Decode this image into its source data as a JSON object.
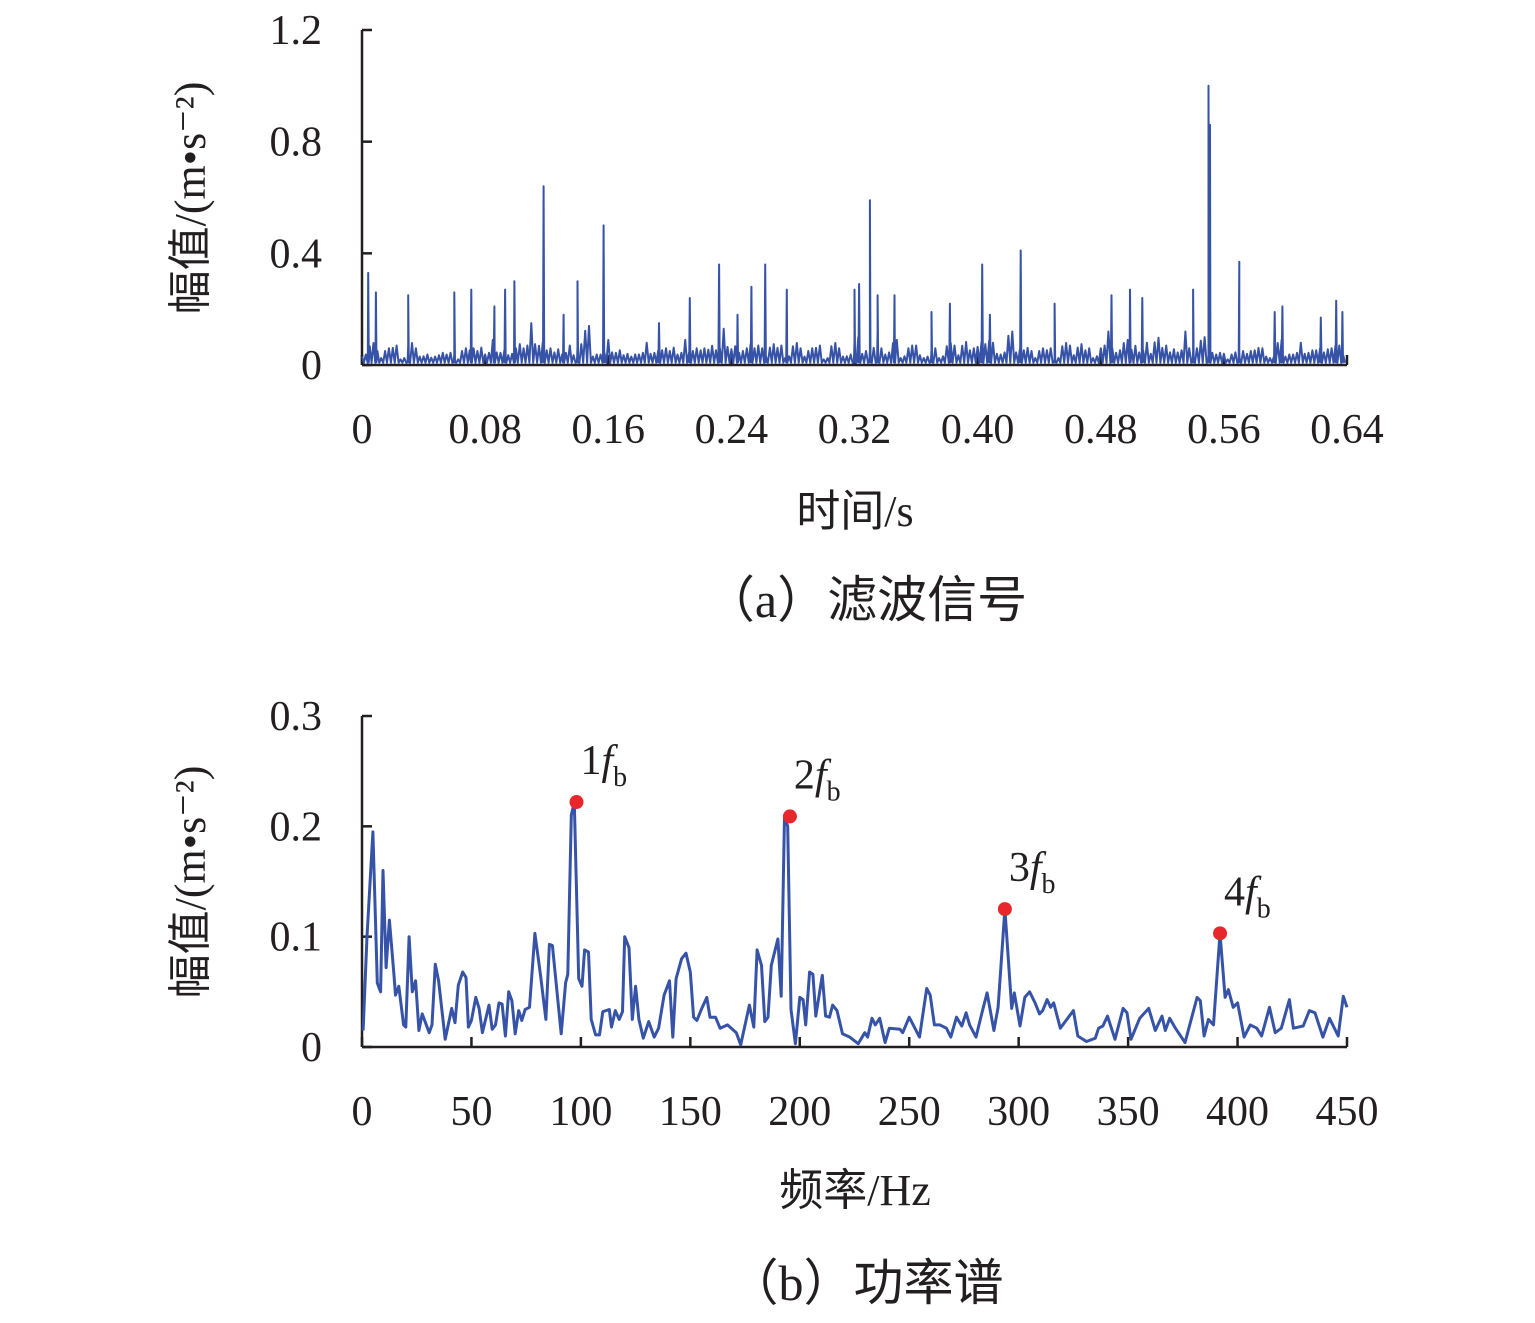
{
  "colors": {
    "line": "#3653a8",
    "marker": "#e8262b",
    "axis": "#231f20"
  },
  "chart_data": [
    {
      "type": "line",
      "id": "filtered-signal",
      "caption": "（a）滤波信号",
      "xlabel": "时间/s",
      "ylabel": "幅值/(m•s⁻²)",
      "xlim": [
        0,
        0.64
      ],
      "ylim": [
        0,
        1.2
      ],
      "xticks": [
        0,
        0.08,
        0.16,
        0.24,
        0.32,
        0.4,
        0.48,
        0.56,
        0.64
      ],
      "xtick_labels": [
        "0",
        "0.08",
        "0.16",
        "0.24",
        "0.32",
        "0.40",
        "0.48",
        "0.56",
        "0.64"
      ],
      "yticks": [
        0,
        0.4,
        0.8,
        1.2
      ],
      "ytick_labels": [
        "0",
        "0.4",
        "0.8",
        "1.2"
      ],
      "grid": false,
      "baseline_step": 0.005,
      "baseline": [
        0.06,
        0.09,
        0.05,
        0.08,
        0.07,
        0.04,
        0.09,
        0.06,
        0.05,
        0.03,
        0.07,
        0.05,
        0.04,
        0.08,
        0.06,
        0.1,
        0.05,
        0.09,
        0.07,
        0.04,
        0.12,
        0.08,
        0.15,
        0.11,
        0.06,
        0.09,
        0.05,
        0.07,
        0.1,
        0.14,
        0.06,
        0.05,
        0.09,
        0.07,
        0.04,
        0.06,
        0.05,
        0.08,
        0.07,
        0.06,
        0.1,
        0.05,
        0.09,
        0.08,
        0.06,
        0.11,
        0.07,
        0.13,
        0.09,
        0.05,
        0.12,
        0.08,
        0.06,
        0.1,
        0.07,
        0.05,
        0.09,
        0.06,
        0.08,
        0.07,
        0.04,
        0.09,
        0.06,
        0.05,
        0.1,
        0.08,
        0.07,
        0.12,
        0.06,
        0.09,
        0.05,
        0.08,
        0.07,
        0.04,
        0.06,
        0.05,
        0.09,
        0.07,
        0.11,
        0.06,
        0.13,
        0.1,
        0.08,
        0.06,
        0.12,
        0.09,
        0.07,
        0.05,
        0.08,
        0.06,
        0.04,
        0.09,
        0.07,
        0.1,
        0.06,
        0.05,
        0.08,
        0.12,
        0.07,
        0.09,
        0.11,
        0.06,
        0.08,
        0.13,
        0.07,
        0.09,
        0.06,
        0.12,
        0.08,
        0.1,
        0.07,
        0.05,
        0.04,
        0.06,
        0.05,
        0.08,
        0.07,
        0.06,
        0.04,
        0.09,
        0.06,
        0.05,
        0.08,
        0.07,
        0.06,
        0.09,
        0.08,
        0.07
      ],
      "spikes": [
        [
          0.004,
          0.33
        ],
        [
          0.009,
          0.26
        ],
        [
          0.03,
          0.25
        ],
        [
          0.06,
          0.26
        ],
        [
          0.071,
          0.27
        ],
        [
          0.086,
          0.21
        ],
        [
          0.093,
          0.27
        ],
        [
          0.099,
          0.3
        ],
        [
          0.118,
          0.64
        ],
        [
          0.131,
          0.18
        ],
        [
          0.14,
          0.3
        ],
        [
          0.157,
          0.5
        ],
        [
          0.193,
          0.15
        ],
        [
          0.213,
          0.24
        ],
        [
          0.232,
          0.36
        ],
        [
          0.244,
          0.18
        ],
        [
          0.253,
          0.28
        ],
        [
          0.262,
          0.36
        ],
        [
          0.276,
          0.27
        ],
        [
          0.32,
          0.27
        ],
        [
          0.323,
          0.29
        ],
        [
          0.33,
          0.59
        ],
        [
          0.335,
          0.25
        ],
        [
          0.346,
          0.25
        ],
        [
          0.37,
          0.19
        ],
        [
          0.382,
          0.22
        ],
        [
          0.403,
          0.36
        ],
        [
          0.408,
          0.18
        ],
        [
          0.428,
          0.41
        ],
        [
          0.45,
          0.22
        ],
        [
          0.487,
          0.25
        ],
        [
          0.499,
          0.27
        ],
        [
          0.507,
          0.24
        ],
        [
          0.54,
          0.27
        ],
        [
          0.55,
          1.0
        ],
        [
          0.551,
          0.86
        ],
        [
          0.57,
          0.37
        ],
        [
          0.593,
          0.19
        ],
        [
          0.598,
          0.21
        ],
        [
          0.623,
          0.17
        ],
        [
          0.633,
          0.23
        ],
        [
          0.637,
          0.19
        ]
      ]
    },
    {
      "type": "line",
      "id": "power-spectrum",
      "caption": "（b）功率谱",
      "xlabel": "频率/Hz",
      "ylabel": "幅值/(m•s⁻²)",
      "xlim": [
        0,
        450
      ],
      "ylim": [
        0,
        0.3
      ],
      "xticks": [
        0,
        50,
        100,
        150,
        200,
        250,
        300,
        350,
        400,
        450
      ],
      "xtick_labels": [
        "0",
        "50",
        "100",
        "150",
        "200",
        "250",
        "300",
        "350",
        "400",
        "450"
      ],
      "yticks": [
        0,
        0.1,
        0.2,
        0.3
      ],
      "ytick_labels": [
        "0",
        "0.1",
        "0.2",
        "0.3"
      ],
      "grid": false,
      "points": [
        [
          0.5,
          0.015
        ],
        [
          2.3,
          0.1
        ],
        [
          5,
          0.195
        ],
        [
          7,
          0.058
        ],
        [
          8.5,
          0.05
        ],
        [
          9.6,
          0.16
        ],
        [
          11,
          0.072
        ],
        [
          12.5,
          0.115
        ],
        [
          14.6,
          0.065
        ],
        [
          15.3,
          0.047
        ],
        [
          16.8,
          0.055
        ],
        [
          19,
          0.02
        ],
        [
          20,
          0.018
        ],
        [
          21.5,
          0.1
        ],
        [
          23,
          0.05
        ],
        [
          24.5,
          0.06
        ],
        [
          26,
          0.015
        ],
        [
          27.5,
          0.03
        ],
        [
          30.7,
          0.013
        ],
        [
          32,
          0.02
        ],
        [
          33.5,
          0.075
        ],
        [
          35,
          0.06
        ],
        [
          38,
          0.007
        ],
        [
          41,
          0.035
        ],
        [
          42.5,
          0.022
        ],
        [
          44,
          0.056
        ],
        [
          46,
          0.068
        ],
        [
          47.5,
          0.063
        ],
        [
          48.6,
          0.018
        ],
        [
          50,
          0.024
        ],
        [
          52,
          0.045
        ],
        [
          53.5,
          0.035
        ],
        [
          55,
          0.013
        ],
        [
          58,
          0.038
        ],
        [
          59.5,
          0.016
        ],
        [
          61,
          0.02
        ],
        [
          62.6,
          0.04
        ],
        [
          64,
          0.039
        ],
        [
          65.5,
          0.01
        ],
        [
          67,
          0.05
        ],
        [
          68.5,
          0.042
        ],
        [
          70,
          0.012
        ],
        [
          71.6,
          0.033
        ],
        [
          73,
          0.024
        ],
        [
          74.5,
          0.034
        ],
        [
          76.5,
          0.036
        ],
        [
          79,
          0.103
        ],
        [
          81.5,
          0.066
        ],
        [
          84,
          0.025
        ],
        [
          85.6,
          0.093
        ],
        [
          87,
          0.092
        ],
        [
          91,
          0.012
        ],
        [
          93,
          0.058
        ],
        [
          94,
          0.066
        ],
        [
          95.6,
          0.21
        ],
        [
          97,
          0.222
        ],
        [
          99,
          0.062
        ],
        [
          100.5,
          0.055
        ],
        [
          101.7,
          0.088
        ],
        [
          103.5,
          0.086
        ],
        [
          104.7,
          0.025
        ],
        [
          106.7,
          0.011
        ],
        [
          108.5,
          0.011
        ],
        [
          110,
          0.032
        ],
        [
          113,
          0.034
        ],
        [
          114,
          0.018
        ],
        [
          115.7,
          0.033
        ],
        [
          117.5,
          0.025
        ],
        [
          119,
          0.032
        ],
        [
          120,
          0.1
        ],
        [
          122,
          0.09
        ],
        [
          123.5,
          0.025
        ],
        [
          125,
          0.055
        ],
        [
          126.5,
          0.025
        ],
        [
          128.5,
          0.008
        ],
        [
          131,
          0.023
        ],
        [
          133.5,
          0.009
        ],
        [
          135.5,
          0.017
        ],
        [
          138,
          0.047
        ],
        [
          140.5,
          0.06
        ],
        [
          142,
          0.009
        ],
        [
          143.5,
          0.062
        ],
        [
          146,
          0.08
        ],
        [
          148,
          0.085
        ],
        [
          150,
          0.068
        ],
        [
          151.5,
          0.027
        ],
        [
          153,
          0.024
        ],
        [
          155,
          0.034
        ],
        [
          157.5,
          0.045
        ],
        [
          159,
          0.027
        ],
        [
          161.5,
          0.027
        ],
        [
          163.6,
          0.017
        ],
        [
          167,
          0.02
        ],
        [
          171,
          0.013
        ],
        [
          173,
          0.002
        ],
        [
          177,
          0.038
        ],
        [
          179,
          0.018
        ],
        [
          180.5,
          0.088
        ],
        [
          182.5,
          0.074
        ],
        [
          184,
          0.023
        ],
        [
          185.5,
          0.027
        ],
        [
          187,
          0.074
        ],
        [
          190,
          0.098
        ],
        [
          191.5,
          0.046
        ],
        [
          193,
          0.209
        ],
        [
          194.5,
          0.2
        ],
        [
          196,
          0.034
        ],
        [
          198,
          0.003
        ],
        [
          200,
          0.045
        ],
        [
          201.5,
          0.043
        ],
        [
          202.7,
          0.02
        ],
        [
          204.5,
          0.068
        ],
        [
          206,
          0.066
        ],
        [
          207.3,
          0.028
        ],
        [
          210.3,
          0.065
        ],
        [
          211.8,
          0.028
        ],
        [
          213.6,
          0.027
        ],
        [
          215,
          0.038
        ],
        [
          217,
          0.033
        ],
        [
          219.5,
          0.012
        ],
        [
          222.8,
          0.009
        ],
        [
          226.7,
          0.003
        ],
        [
          229.7,
          0.013
        ],
        [
          231,
          0.009
        ],
        [
          233,
          0.026
        ],
        [
          234.5,
          0.02
        ],
        [
          236.5,
          0.026
        ],
        [
          239,
          0.004
        ],
        [
          240.9,
          0.017
        ],
        [
          245.8,
          0.016
        ],
        [
          247,
          0.013
        ],
        [
          250,
          0.027
        ],
        [
          254.7,
          0.009
        ],
        [
          258,
          0.053
        ],
        [
          259.6,
          0.047
        ],
        [
          261.5,
          0.02
        ],
        [
          264,
          0.02
        ],
        [
          267,
          0.017
        ],
        [
          269,
          0.009
        ],
        [
          271.6,
          0.027
        ],
        [
          274,
          0.019
        ],
        [
          276,
          0.031
        ],
        [
          277.6,
          0.02
        ],
        [
          280.5,
          0.009
        ],
        [
          283.5,
          0.033
        ],
        [
          285.6,
          0.049
        ],
        [
          288.7,
          0.015
        ],
        [
          290.6,
          0.036
        ],
        [
          293.7,
          0.125
        ],
        [
          296.8,
          0.035
        ],
        [
          298,
          0.049
        ],
        [
          300.6,
          0.019
        ],
        [
          302.8,
          0.045
        ],
        [
          305,
          0.05
        ],
        [
          307.5,
          0.04
        ],
        [
          309.5,
          0.03
        ],
        [
          311,
          0.033
        ],
        [
          313,
          0.043
        ],
        [
          314.6,
          0.036
        ],
        [
          316,
          0.04
        ],
        [
          319,
          0.017
        ],
        [
          325,
          0.033
        ],
        [
          327,
          0.01
        ],
        [
          331,
          0.005
        ],
        [
          335,
          0.008
        ],
        [
          336.5,
          0.017
        ],
        [
          338.5,
          0.019
        ],
        [
          340.6,
          0.028
        ],
        [
          344,
          0.007
        ],
        [
          347.7,
          0.035
        ],
        [
          349.5,
          0.031
        ],
        [
          351.3,
          0.007
        ],
        [
          355.3,
          0.026
        ],
        [
          359.4,
          0.035
        ],
        [
          362.4,
          0.015
        ],
        [
          365.5,
          0.028
        ],
        [
          367,
          0.015
        ],
        [
          369,
          0.026
        ],
        [
          371.6,
          0.017
        ],
        [
          376,
          0.004
        ],
        [
          381.5,
          0.045
        ],
        [
          383,
          0.042
        ],
        [
          384.7,
          0.01
        ],
        [
          386.7,
          0.025
        ],
        [
          389,
          0.02
        ],
        [
          392,
          0.103
        ],
        [
          394.3,
          0.045
        ],
        [
          395.8,
          0.052
        ],
        [
          398,
          0.036
        ],
        [
          400,
          0.04
        ],
        [
          403,
          0.009
        ],
        [
          405.8,
          0.02
        ],
        [
          408.8,
          0.017
        ],
        [
          411,
          0.01
        ],
        [
          414.6,
          0.036
        ],
        [
          417.2,
          0.013
        ],
        [
          420,
          0.017
        ],
        [
          423.7,
          0.043
        ],
        [
          425.5,
          0.017
        ],
        [
          430,
          0.019
        ],
        [
          432.8,
          0.033
        ],
        [
          435.4,
          0.031
        ],
        [
          439,
          0.009
        ],
        [
          442,
          0.026
        ],
        [
          446,
          0.01
        ],
        [
          448.3,
          0.046
        ],
        [
          450,
          0.036
        ]
      ],
      "annotations": [
        {
          "label_num": "1",
          "label_f": "f",
          "label_sub": "b",
          "x": 98,
          "y": 0.222
        },
        {
          "label_num": "2",
          "label_f": "f",
          "label_sub": "b",
          "x": 195.5,
          "y": 0.209
        },
        {
          "label_num": "3",
          "label_f": "f",
          "label_sub": "b",
          "x": 293.7,
          "y": 0.125
        },
        {
          "label_num": "4",
          "label_f": "f",
          "label_sub": "b",
          "x": 392,
          "y": 0.103
        }
      ]
    }
  ]
}
